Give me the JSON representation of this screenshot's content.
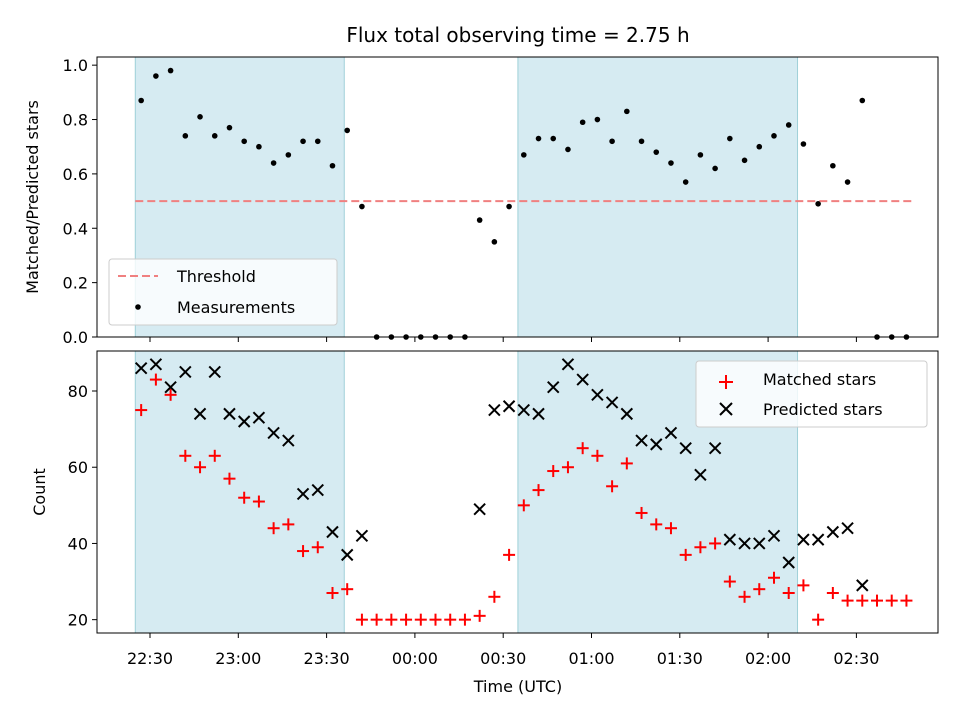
{
  "chart_data": [
    {
      "type": "scatter",
      "title": "Flux total observing time = 2.75 h",
      "xlabel": "",
      "ylabel": "Matched/Predicted stars",
      "ylim": [
        0,
        1.03
      ],
      "yticks": [
        "0.0",
        "0.2",
        "0.4",
        "0.6",
        "0.8",
        "1.0"
      ],
      "shaded_intervals": [
        [
          "22:25",
          "23:36"
        ],
        [
          "00:35",
          "02:10"
        ]
      ],
      "threshold": {
        "name": "Threshold",
        "value": 0.5,
        "from": "22:25",
        "to": "02:49",
        "color": "#f08080"
      },
      "series": [
        {
          "name": "Measurements",
          "marker": "dot",
          "color": "#000000",
          "x": [
            "22:27",
            "22:32",
            "22:37",
            "22:42",
            "22:47",
            "22:52",
            "22:57",
            "23:02",
            "23:07",
            "23:12",
            "23:17",
            "23:22",
            "23:27",
            "23:32",
            "23:37",
            "23:42",
            "23:47",
            "23:52",
            "23:57",
            "00:02",
            "00:07",
            "00:12",
            "00:17",
            "00:22",
            "00:27",
            "00:32",
            "00:37",
            "00:42",
            "00:47",
            "00:52",
            "00:57",
            "01:02",
            "01:07",
            "01:12",
            "01:17",
            "01:22",
            "01:27",
            "01:32",
            "01:37",
            "01:42",
            "01:47",
            "01:52",
            "01:57",
            "02:02",
            "02:07",
            "02:12",
            "02:17",
            "02:22",
            "02:27",
            "02:32",
            "02:37",
            "02:42",
            "02:47"
          ],
          "y": [
            0.87,
            0.96,
            0.98,
            0.74,
            0.81,
            0.74,
            0.77,
            0.72,
            0.7,
            0.64,
            0.67,
            0.72,
            0.72,
            0.63,
            0.76,
            0.48,
            0.0,
            0.0,
            0.0,
            0.0,
            0.0,
            0.0,
            0.0,
            0.43,
            0.35,
            0.48,
            0.67,
            0.73,
            0.73,
            0.69,
            0.79,
            0.8,
            0.72,
            0.83,
            0.72,
            0.68,
            0.64,
            0.57,
            0.67,
            0.62,
            0.73,
            0.65,
            0.7,
            0.74,
            0.78,
            0.71,
            0.49,
            0.63,
            0.57,
            0.87,
            0.0,
            0.0,
            0.0
          ]
        }
      ],
      "legend": "lower-left"
    },
    {
      "type": "scatter",
      "xlabel": "Time (UTC)",
      "ylabel": "Count",
      "ylim": [
        16.5,
        90.5
      ],
      "yticks": [
        "20",
        "40",
        "60",
        "80"
      ],
      "xticks": [
        "22:30",
        "23:00",
        "23:30",
        "00:00",
        "00:30",
        "01:00",
        "01:30",
        "02:00",
        "02:30"
      ],
      "shaded_intervals": [
        [
          "22:25",
          "23:36"
        ],
        [
          "00:35",
          "02:10"
        ]
      ],
      "series": [
        {
          "name": "Matched stars",
          "marker": "plus",
          "color": "#ff0000",
          "x": [
            "22:27",
            "22:32",
            "22:37",
            "22:42",
            "22:47",
            "22:52",
            "22:57",
            "23:02",
            "23:07",
            "23:12",
            "23:17",
            "23:22",
            "23:27",
            "23:32",
            "23:37",
            "23:42",
            "23:47",
            "23:52",
            "23:57",
            "00:02",
            "00:07",
            "00:12",
            "00:17",
            "00:22",
            "00:27",
            "00:32",
            "00:37",
            "00:42",
            "00:47",
            "00:52",
            "00:57",
            "01:02",
            "01:07",
            "01:12",
            "01:17",
            "01:22",
            "01:27",
            "01:32",
            "01:37",
            "01:42",
            "01:47",
            "01:52",
            "01:57",
            "02:02",
            "02:07",
            "02:12",
            "02:17",
            "02:22",
            "02:27",
            "02:32",
            "02:37",
            "02:42",
            "02:47"
          ],
          "y": [
            75,
            83,
            79,
            63,
            60,
            63,
            57,
            52,
            51,
            44,
            45,
            38,
            39,
            27,
            28,
            20,
            20,
            20,
            20,
            20,
            20,
            20,
            20,
            21,
            26,
            37,
            50,
            54,
            59,
            60,
            65,
            63,
            55,
            61,
            48,
            45,
            44,
            37,
            39,
            40,
            30,
            26,
            28,
            31,
            27,
            29,
            20,
            27,
            25,
            25,
            25,
            25,
            25
          ]
        },
        {
          "name": "Predicted stars",
          "marker": "x",
          "color": "#000000",
          "x": [
            "22:27",
            "22:32",
            "22:37",
            "22:42",
            "22:47",
            "22:52",
            "22:57",
            "23:02",
            "23:07",
            "23:12",
            "23:17",
            "23:22",
            "23:27",
            "23:32",
            "23:37",
            "23:42",
            "00:22",
            "00:27",
            "00:32",
            "00:37",
            "00:42",
            "00:47",
            "00:52",
            "00:57",
            "01:02",
            "01:07",
            "01:12",
            "01:17",
            "01:22",
            "01:27",
            "01:32",
            "01:37",
            "01:42",
            "01:47",
            "01:52",
            "01:57",
            "02:02",
            "02:07",
            "02:12",
            "02:17",
            "02:22",
            "02:27",
            "02:32"
          ],
          "y": [
            86,
            87,
            81,
            85,
            74,
            85,
            74,
            72,
            73,
            69,
            67,
            53,
            54,
            43,
            37,
            42,
            49,
            75,
            76,
            75,
            74,
            81,
            87,
            83,
            79,
            77,
            74,
            67,
            66,
            69,
            65,
            58,
            65,
            41,
            40,
            40,
            42,
            35,
            41,
            41,
            43,
            44,
            29
          ]
        }
      ],
      "legend": "upper-right"
    }
  ]
}
